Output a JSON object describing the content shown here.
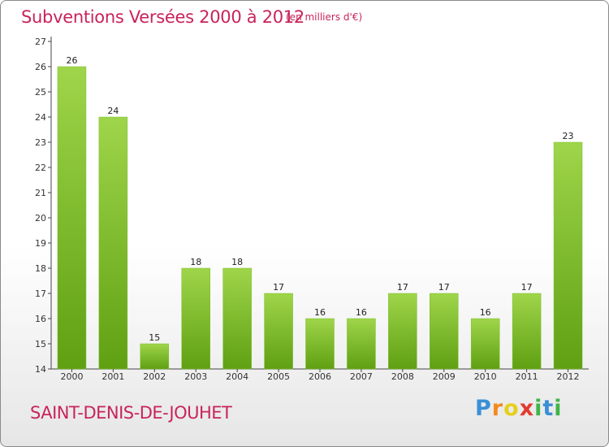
{
  "chart_data": {
    "type": "bar",
    "title": "Subventions Versées 2000 à 2012",
    "subtitle": "(en milliers d'€)",
    "categories": [
      "2000",
      "2001",
      "2002",
      "2003",
      "2004",
      "2005",
      "2006",
      "2007",
      "2008",
      "2009",
      "2010",
      "2011",
      "2012"
    ],
    "values": [
      26,
      24,
      15,
      18,
      18,
      17,
      16,
      16,
      17,
      17,
      16,
      17,
      23
    ],
    "ylim": [
      14,
      27
    ],
    "yticks": [
      14,
      15,
      16,
      17,
      18,
      19,
      20,
      21,
      22,
      23,
      24,
      25,
      26,
      27
    ],
    "xlabel": "",
    "ylabel": "",
    "grid": false,
    "bar_color_top": "#9fd54a",
    "bar_color_bottom": "#5fa012"
  },
  "footer": {
    "commune": "SAINT-DENIS-DE-JOUHET"
  },
  "logo": {
    "letters": [
      "P",
      "r",
      "o",
      "x",
      "i",
      "t",
      "i"
    ],
    "colors": [
      "#3a8fd6",
      "#f28a1c",
      "#e7cf1b",
      "#e23a2e",
      "#3fb54a",
      "#3a8fd6",
      "#3fb54a"
    ]
  }
}
